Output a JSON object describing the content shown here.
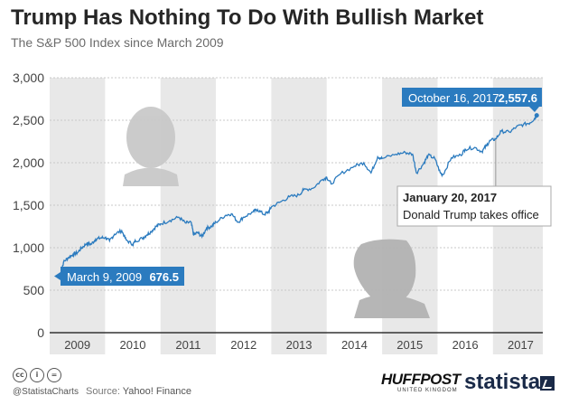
{
  "header": {
    "title": "Trump Has Nothing To Do With Bullish Market",
    "subtitle": "The S&P 500 Index since March 2009"
  },
  "chart_data": {
    "type": "line",
    "ylim": [
      0,
      3000
    ],
    "y_ticks": [
      0,
      500,
      1000,
      1500,
      2000,
      2500,
      3000
    ],
    "y_tick_labels": [
      "0",
      "500",
      "1,000",
      "1,500",
      "2,000",
      "2,500",
      "3,000"
    ],
    "x_range": [
      2009.0,
      2017.9
    ],
    "x_tick_labels": [
      "2009",
      "2010",
      "2011",
      "2012",
      "2013",
      "2014",
      "2015",
      "2016",
      "2017"
    ],
    "x_tick_positions": [
      2009.5,
      2010.5,
      2011.5,
      2012.5,
      2013.5,
      2014.5,
      2015.5,
      2016.5,
      2017.5
    ],
    "grid": true,
    "line_color": "#2b7bbf",
    "band_color": "#e8e8e8",
    "series": [
      {
        "values": [
          [
            2009.19,
            676.5
          ],
          [
            2009.25,
            830
          ],
          [
            2009.33,
            880
          ],
          [
            2009.42,
            920
          ],
          [
            2009.5,
            940
          ],
          [
            2009.58,
            1000
          ],
          [
            2009.67,
            1050
          ],
          [
            2009.75,
            1040
          ],
          [
            2009.83,
            1100
          ],
          [
            2009.92,
            1115
          ],
          [
            2010.0,
            1120
          ],
          [
            2010.08,
            1080
          ],
          [
            2010.17,
            1160
          ],
          [
            2010.3,
            1200
          ],
          [
            2010.38,
            1090
          ],
          [
            2010.5,
            1040
          ],
          [
            2010.55,
            1080
          ],
          [
            2010.67,
            1110
          ],
          [
            2010.75,
            1150
          ],
          [
            2010.83,
            1190
          ],
          [
            2010.92,
            1250
          ],
          [
            2011.0,
            1280
          ],
          [
            2011.17,
            1320
          ],
          [
            2011.33,
            1360
          ],
          [
            2011.45,
            1290
          ],
          [
            2011.55,
            1300
          ],
          [
            2011.6,
            1150
          ],
          [
            2011.67,
            1180
          ],
          [
            2011.75,
            1130
          ],
          [
            2011.83,
            1230
          ],
          [
            2011.92,
            1250
          ],
          [
            2012.0,
            1300
          ],
          [
            2012.17,
            1380
          ],
          [
            2012.28,
            1400
          ],
          [
            2012.4,
            1300
          ],
          [
            2012.5,
            1360
          ],
          [
            2012.67,
            1420
          ],
          [
            2012.75,
            1450
          ],
          [
            2012.87,
            1390
          ],
          [
            2012.95,
            1420
          ],
          [
            2013.0,
            1480
          ],
          [
            2013.17,
            1540
          ],
          [
            2013.33,
            1600
          ],
          [
            2013.5,
            1620
          ],
          [
            2013.58,
            1680
          ],
          [
            2013.75,
            1700
          ],
          [
            2013.92,
            1800
          ],
          [
            2014.0,
            1830
          ],
          [
            2014.08,
            1750
          ],
          [
            2014.25,
            1870
          ],
          [
            2014.5,
            1960
          ],
          [
            2014.67,
            2000
          ],
          [
            2014.8,
            1880
          ],
          [
            2014.92,
            2070
          ],
          [
            2015.0,
            2050
          ],
          [
            2015.25,
            2100
          ],
          [
            2015.42,
            2120
          ],
          [
            2015.55,
            2100
          ],
          [
            2015.62,
            1880
          ],
          [
            2015.75,
            1990
          ],
          [
            2015.83,
            2090
          ],
          [
            2015.95,
            2050
          ],
          [
            2016.05,
            1880
          ],
          [
            2016.1,
            1860
          ],
          [
            2016.25,
            2060
          ],
          [
            2016.42,
            2090
          ],
          [
            2016.5,
            2160
          ],
          [
            2016.67,
            2180
          ],
          [
            2016.8,
            2130
          ],
          [
            2016.88,
            2200
          ],
          [
            2016.95,
            2260
          ],
          [
            2017.05,
            2280
          ],
          [
            2017.15,
            2370
          ],
          [
            2017.3,
            2360
          ],
          [
            2017.42,
            2420
          ],
          [
            2017.55,
            2450
          ],
          [
            2017.67,
            2470
          ],
          [
            2017.75,
            2520
          ],
          [
            2017.79,
            2557.6
          ]
        ]
      }
    ],
    "annotations": {
      "start": {
        "date": "March 9, 2009",
        "value": "676.5",
        "x": 2009.19,
        "y": 676.5
      },
      "end": {
        "date": "October 16, 2017",
        "value": "2,557.6",
        "x": 2017.79,
        "y": 2557.6
      },
      "inauguration": {
        "title": "January 20, 2017",
        "text": "Donald Trump takes office",
        "x": 2017.05
      }
    }
  },
  "footer": {
    "cc_icons": [
      "cc",
      "i",
      "="
    ],
    "handle": "@StatistaCharts",
    "source_label": "Source:",
    "source": "Yahoo! Finance",
    "huffpost_logo": "HUFFPOST",
    "huffpost_sub": "UNITED KINGDOM",
    "statista_logo": "statista"
  }
}
